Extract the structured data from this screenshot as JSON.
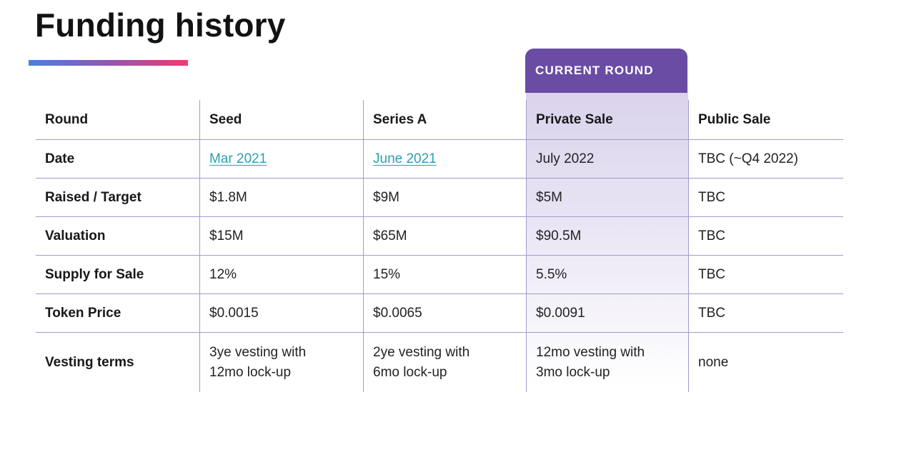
{
  "title": "Funding history",
  "badge": {
    "label": "CURRENT ROUND"
  },
  "colors": {
    "accent_gradient_start": "#4b80d8",
    "accent_gradient_mid": "#9257b4",
    "accent_gradient_end": "#ef3b6e",
    "badge_purple": "#6a4ca4",
    "highlight_lavender": "#dad3eb",
    "table_border": "#a29ad0",
    "link_teal": "#2d9fb0",
    "text": "#222224"
  },
  "table": {
    "header": {
      "row_label": "Round",
      "columns": [
        "Seed",
        "Series A",
        "Private Sale",
        "Public Sale"
      ]
    },
    "highlight_column": "Private Sale",
    "rows": [
      {
        "label": "Date",
        "values": [
          "Mar 2021",
          "June 2021",
          "July 2022",
          "TBC (~Q4 2022)"
        ],
        "links": [
          true,
          true,
          false,
          false
        ]
      },
      {
        "label": "Raised / Target",
        "values": [
          "$1.8M",
          "$9M",
          "$5M",
          "TBC"
        ]
      },
      {
        "label": "Valuation",
        "values": [
          "$15M",
          "$65M",
          "$90.5M",
          "TBC"
        ]
      },
      {
        "label": "Supply for Sale",
        "values": [
          "12%",
          "15%",
          "5.5%",
          "TBC"
        ]
      },
      {
        "label": "Token Price",
        "values": [
          "$0.0015",
          "$0.0065",
          "$0.0091",
          "TBC"
        ]
      },
      {
        "label": "Vesting terms",
        "values": [
          "3ye vesting with\n12mo lock-up",
          "2ye vesting with\n6mo lock-up",
          "12mo vesting with\n3mo lock-up",
          "none"
        ]
      }
    ]
  }
}
